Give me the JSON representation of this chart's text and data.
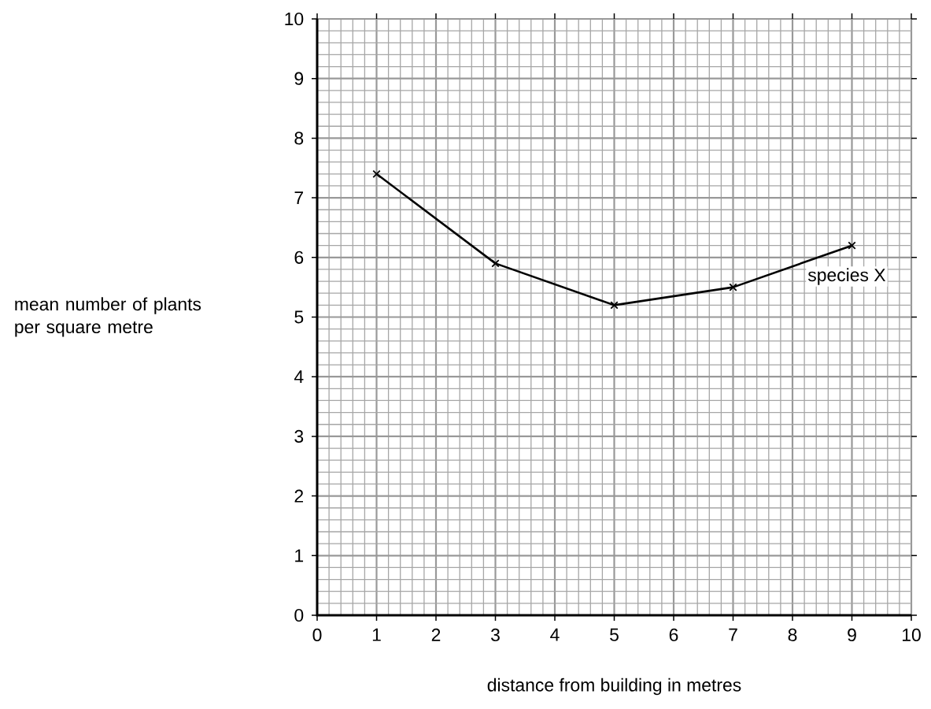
{
  "chart_data": {
    "type": "line",
    "xlabel": "distance from building in metres",
    "ylabel": "mean number of plants per square metre",
    "x": [
      1,
      3,
      5,
      7,
      9
    ],
    "series": [
      {
        "name": "species X",
        "color": "#000000",
        "values": [
          7.4,
          5.9,
          5.2,
          5.5,
          6.2
        ]
      }
    ],
    "xlim": [
      0,
      10
    ],
    "ylim": [
      0,
      10
    ],
    "xticks": [
      0,
      1,
      2,
      3,
      4,
      5,
      6,
      7,
      8,
      9,
      10
    ],
    "yticks": [
      0,
      1,
      2,
      3,
      4,
      5,
      6,
      7,
      8,
      9,
      10
    ],
    "grid": true,
    "marker": "cross",
    "line_style": "solid"
  }
}
